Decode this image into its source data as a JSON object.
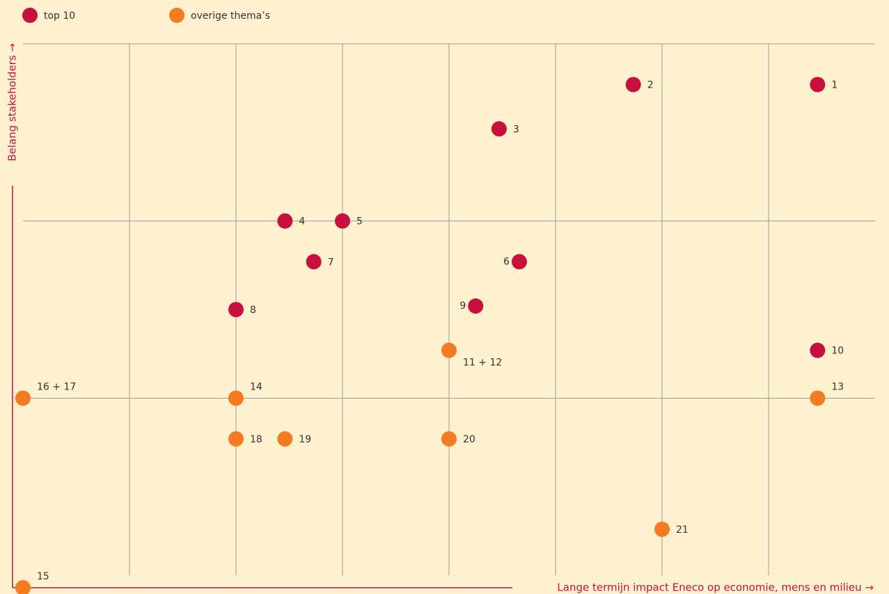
{
  "chart_data": {
    "type": "scatter",
    "xlabel": "Lange termijn impact Eneco op economie, mens en milieu →",
    "ylabel": "Belang stakeholders →",
    "xlim": [
      0,
      8
    ],
    "ylim": [
      -0.07,
      3
    ],
    "xticks": [
      1,
      2,
      3,
      4,
      5,
      6,
      7
    ],
    "yticks": [
      1,
      2,
      3
    ],
    "grid": true,
    "series": [
      {
        "name": "top 10",
        "color": "#c8103f",
        "x": [
          7.46,
          5.73,
          4.47,
          2.46,
          3.0,
          4.66,
          2.73,
          2.0,
          4.25,
          7.46
        ],
        "y": [
          2.77,
          2.77,
          2.52,
          2.0,
          2.0,
          1.77,
          1.77,
          1.5,
          1.52,
          1.27
        ],
        "labels": [
          "1",
          "2",
          "3",
          "4",
          "5",
          "6",
          "7",
          "8",
          "9",
          "10"
        ]
      },
      {
        "name": "overige thema’s",
        "color": "#f47b20",
        "x": [
          4.0,
          7.46,
          2.0,
          0,
          0,
          2.0,
          2.46,
          4.0,
          6.0
        ],
        "y": [
          1.27,
          1.0,
          1.0,
          -0.07,
          1.0,
          0.77,
          0.77,
          0.77,
          0.26
        ],
        "labels": [
          "11 + 12",
          "13",
          "14",
          "15",
          "16 + 17",
          "18",
          "19",
          "20",
          "21"
        ]
      }
    ]
  }
}
